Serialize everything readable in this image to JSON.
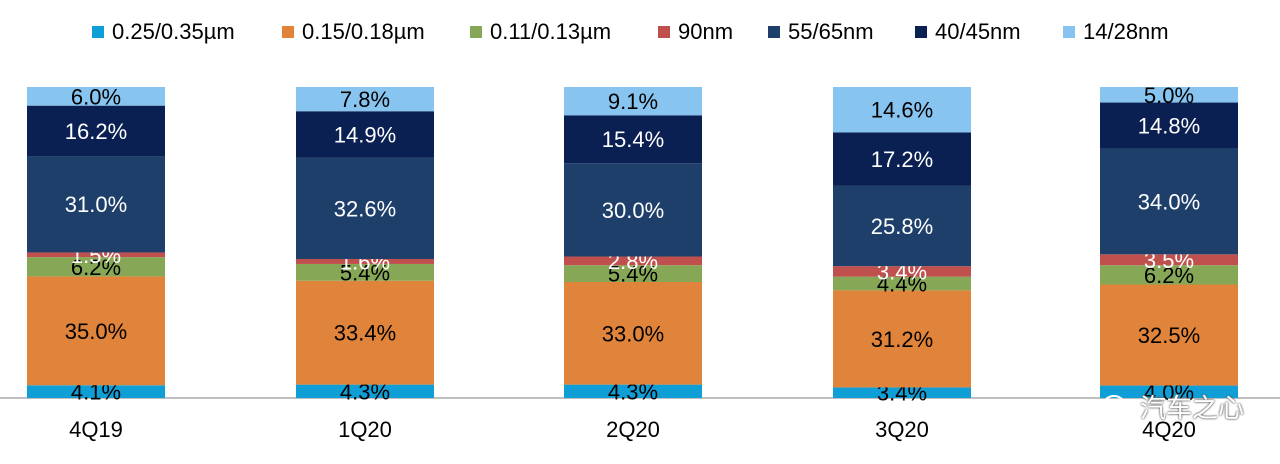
{
  "chart_data": {
    "type": "bar",
    "stacked": true,
    "normalized": true,
    "categories": [
      "4Q19",
      "1Q20",
      "2Q20",
      "3Q20",
      "4Q20"
    ],
    "series": [
      {
        "name": "0.25/0.35µm",
        "color": "#0f9ed5",
        "values": [
          4.1,
          4.3,
          4.3,
          3.4,
          4.0
        ]
      },
      {
        "name": "0.15/0.18µm",
        "color": "#e1843b",
        "values": [
          35.0,
          33.4,
          33.0,
          31.2,
          32.5
        ]
      },
      {
        "name": "0.11/0.13µm",
        "color": "#86a856",
        "values": [
          6.2,
          5.4,
          5.4,
          4.4,
          6.2
        ]
      },
      {
        "name": "90nm",
        "color": "#c0504d",
        "values": [
          1.5,
          1.6,
          2.8,
          3.4,
          3.5
        ]
      },
      {
        "name": "55/65nm",
        "color": "#1f3f6b",
        "values": [
          31.0,
          32.6,
          30.0,
          25.8,
          34.0
        ]
      },
      {
        "name": "40/45nm",
        "color": "#0a1f52",
        "values": [
          16.2,
          14.9,
          15.4,
          17.2,
          14.8
        ]
      },
      {
        "name": "14/28nm",
        "color": "#88c4f0",
        "values": [
          6.0,
          7.8,
          9.1,
          14.6,
          5.0
        ]
      }
    ],
    "data_label_format": "{v}%",
    "legend_position": "top",
    "grid": false
  },
  "watermark": {
    "text": "汽车之心",
    "icon": "wechat-icon"
  }
}
